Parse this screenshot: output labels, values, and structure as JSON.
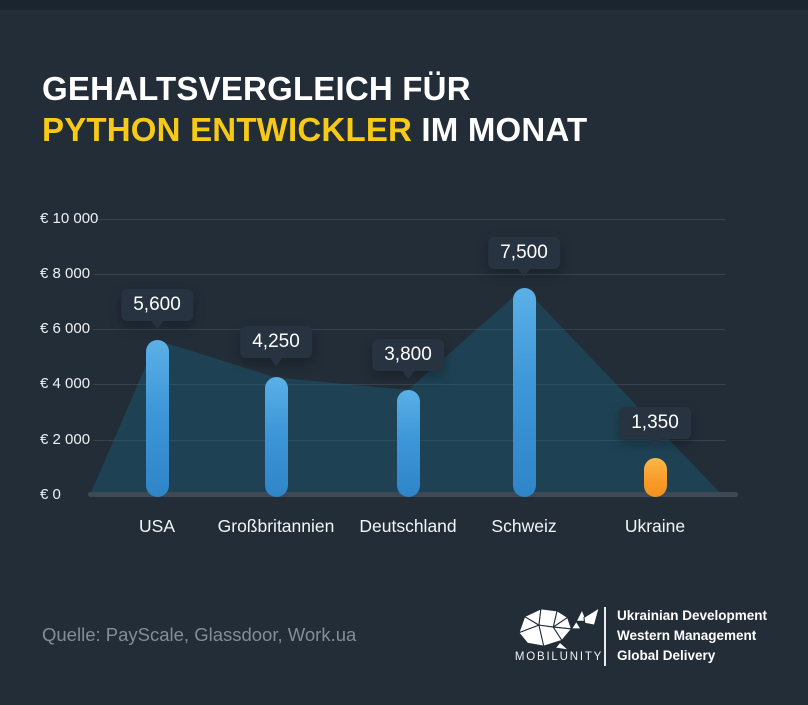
{
  "title": {
    "line1": "GEHALTSVERGLEICH FÜR",
    "line2_highlight": "PYTHON ENTWICKLER",
    "line2_rest": " IM MONAT"
  },
  "chart_data": {
    "type": "bar",
    "title": "Gehaltsvergleich für Python Entwickler im Monat",
    "categories": [
      "USA",
      "Großbritannien",
      "Deutschland",
      "Schweiz",
      "Ukraine"
    ],
    "values": [
      5600,
      4250,
      3800,
      7500,
      1350
    ],
    "value_labels": [
      "5,600",
      "4,250",
      "3,800",
      "7,500",
      "1,350"
    ],
    "highlight_index": 4,
    "currency": "EUR",
    "ylim": [
      0,
      10000
    ],
    "y_ticks": [
      {
        "value": 10000,
        "label": "€ 10 000"
      },
      {
        "value": 8000,
        "label": "€ 8 000"
      },
      {
        "value": 6000,
        "label": "€ 6 000"
      },
      {
        "value": 4000,
        "label": "€ 4 000"
      },
      {
        "value": 2000,
        "label": "€ 2 000"
      },
      {
        "value": 0,
        "label": "€ 0"
      }
    ],
    "grid": true,
    "area_series": true,
    "legend": null
  },
  "colors": {
    "background": "#232d38",
    "accent_yellow": "#f7ca18",
    "bar_blue": "#3e97d8",
    "bar_orange": "#f89a28",
    "area_fill": "rgba(24,95,125,0.42)",
    "bubble_bg": "#273340"
  },
  "footer": {
    "source": "Quelle: PayScale, Glassdoor, Work.ua",
    "logo_word": "MOBILUNITY",
    "taglines": [
      "Ukrainian Development",
      "Western Management",
      "Global Delivery"
    ]
  }
}
